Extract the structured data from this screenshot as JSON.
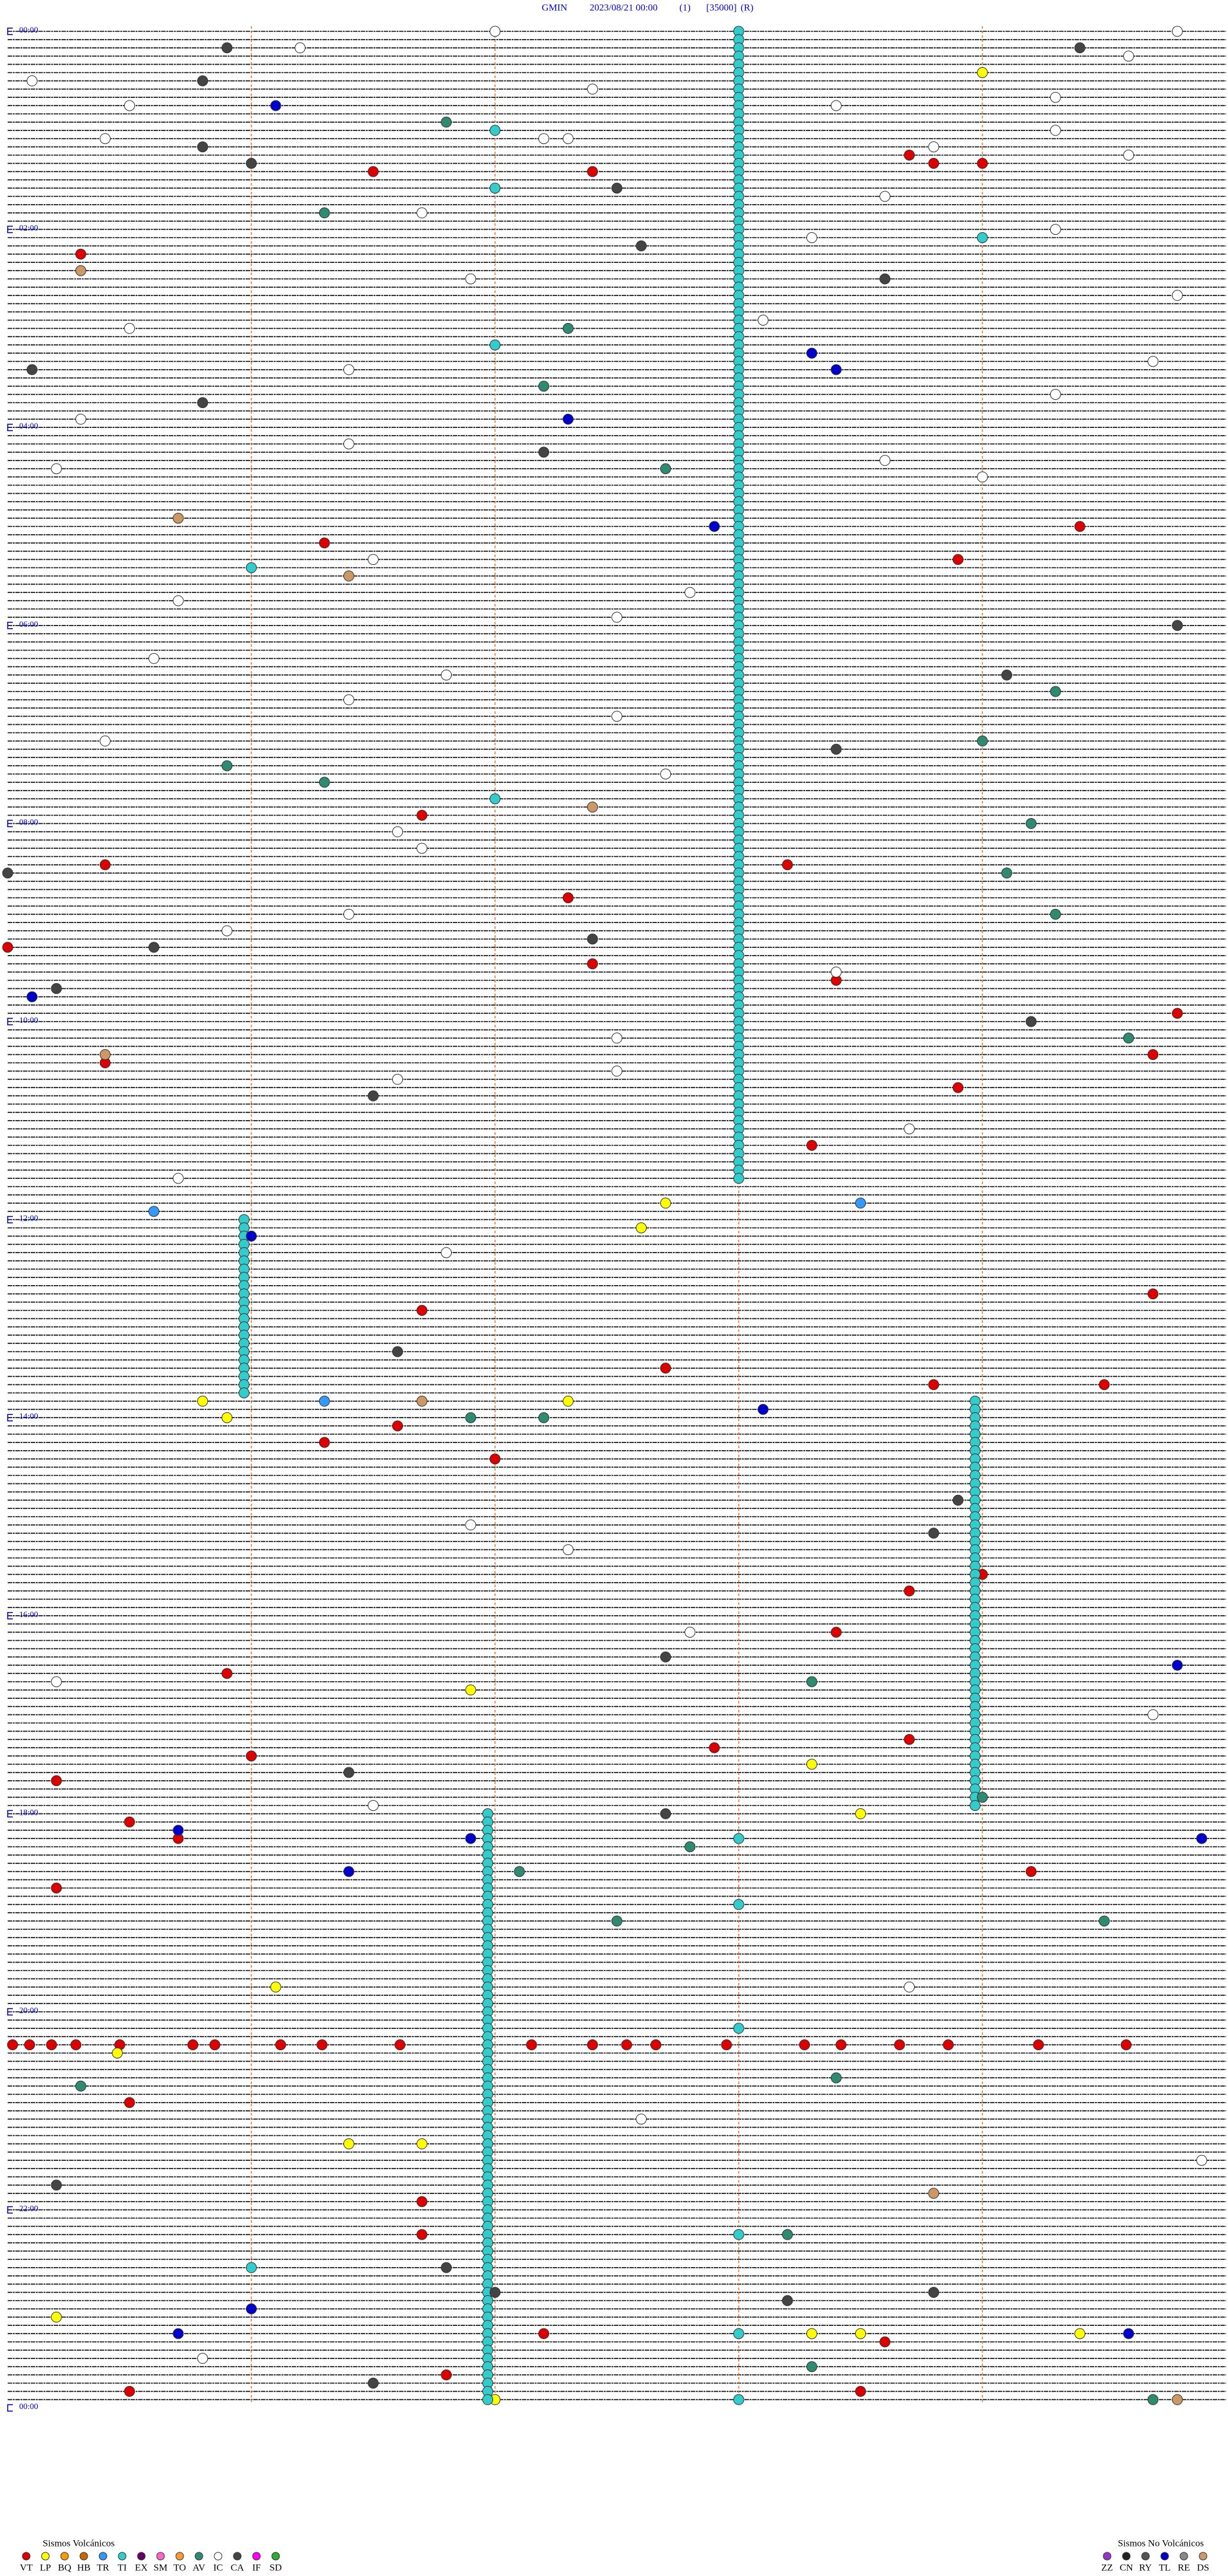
{
  "chart_data": {
    "type": "helicorder",
    "station": "GMIN",
    "date": "2023/08/21 00:00",
    "channel": "(1)",
    "scale": "[35000]",
    "mode": "(R)",
    "xlim": [
      0,
      5
    ],
    "xticks": [
      1,
      2,
      3,
      4
    ],
    "ylim": [
      0,
      1440
    ],
    "yticks": [
      {
        "value": 0,
        "label": "00:00"
      },
      {
        "value": 120,
        "label": "02:00"
      },
      {
        "value": 240,
        "label": "04:00"
      },
      {
        "value": 360,
        "label": "06:00"
      },
      {
        "value": 480,
        "label": "08:00"
      },
      {
        "value": 600,
        "label": "10:00"
      },
      {
        "value": 720,
        "label": "12:00"
      },
      {
        "value": 840,
        "label": "14:00"
      },
      {
        "value": 960,
        "label": "16:00"
      },
      {
        "value": 1080,
        "label": "18:00"
      },
      {
        "value": 1200,
        "label": "20:00"
      },
      {
        "value": 1320,
        "label": "22:00"
      },
      {
        "value": 1440,
        "label": "00:00"
      }
    ],
    "groups": [
      "Sismos Volcánicos",
      "Sismos No Volcánicos"
    ],
    "series": [
      {
        "name": "VT",
        "group": 0,
        "color": "#dd0000",
        "values": [
          135.3,
          86.5,
          87.4,
          78.7,
          83.8,
          84.0,
          304.4,
          323.9,
          311.3,
          476.7,
          527.3,
          505.4,
          508.2,
          567.4,
          555.0,
          578.4,
          599.8,
          624.7,
          625.4,
          643.9,
          678.3,
          769.7,
          776.7,
          812.7,
          823.8,
          824.5,
          846.6,
          856.3,
          867.0,
          939.0,
          948.7,
          973.4,
          995.9,
          1042.9,
          1038.7,
          1046.0,
          1060.2,
          1085.5,
          1095.7,
          1125.2,
          1119.2,
          1220.02,
          1220.09,
          1220.18,
          1220.28,
          1220.46,
          1220.76,
          1220.85,
          1221.12,
          1221.29,
          1221.61,
          1222.15,
          1222.4,
          1222.54,
          1222.66,
          1222.95,
          1223.27,
          1223.42,
          1223.66,
          1223.86,
          1224.23,
          1224.59,
          1255.5,
          1316.7,
          1336.7,
          1397.2,
          1403.6,
          1421.8,
          1430.5,
          1433.5
        ]
      },
      {
        "name": "LP",
        "group": 0,
        "color": "#ffff00",
        "values": [
          29.0,
          712.7,
          727.6,
          830.8,
          840.9,
          832.3,
          1006.9,
          1053.3,
          1083.5,
          1225.45,
          1186.1,
          1281.4,
          1281.7,
          1398.3,
          1398.5,
          1399.4,
          1385.2,
          1437.0
        ]
      },
      {
        "name": "BQ",
        "group": 0,
        "color": "#ff9900",
        "values": []
      },
      {
        "name": "HB",
        "group": 0,
        "color": "#cc6600",
        "values": []
      },
      {
        "name": "TR",
        "group": 0,
        "color": "#3399ff",
        "values": [
          715.6,
          713.5,
          831.3
        ]
      },
      {
        "name": "TI",
        "group": 0,
        "color": "#33cccc",
        "values": [
          1098.0,
          1138.0,
          1213.0,
          1338.0,
          1398.0,
          1438.0,
          129.0,
          192.0,
          326.0,
          467.0,
          62.0,
          97.0,
          1356.0
        ],
        "runs": [
          {
            "from": 0,
            "to": 699,
            "offset": 3.0
          },
          {
            "from": 720,
            "to": 829,
            "offset": 0.97
          },
          {
            "from": 830,
            "to": 1079,
            "offset": 3.97
          },
          {
            "from": 1080,
            "to": 1439,
            "offset": 1.97
          }
        ]
      },
      {
        "name": "EX",
        "group": 0,
        "color": "#660066",
        "values": []
      },
      {
        "name": "SM",
        "group": 0,
        "color": "#ff66cc",
        "values": []
      },
      {
        "name": "TO",
        "group": 0,
        "color": "#ff9933",
        "values": []
      },
      {
        "name": "AV",
        "group": 0,
        "color": "#2e8b72",
        "values": [
          56.8,
          111.3,
          182.3,
          217.2,
          267.7,
          445.9,
          456.3,
          434.0,
          484.2,
          514.1,
          539.3,
          404.3,
          614.6,
          841.9,
          842.2,
          1003.3,
          1074.0,
          1102.8,
          1117.1,
          1147.5,
          1149.5,
          1245.3,
          1243.4,
          1338.2,
          1418.3,
          1439.7
        ]
      },
      {
        "name": "IC",
        "group": 0,
        "color": "#ffffff",
        "values": [
          11.2,
          2.0,
          4.8,
          19.6,
          30.1,
          37.4,
          45.5,
          48.4,
          44.3,
          64.3,
          65.4,
          67.2,
          67.3,
          73.8,
          79.6,
          103.6,
          111.7,
          124.3,
          128.3,
          151.9,
          164.8,
          180.5,
          178.1,
          204.7,
          206.4,
          224.3,
          235.3,
          251.4,
          263.6,
          265.2,
          274.0,
          321.5,
          345.7,
          342.8,
          357.5,
          380.6,
          391.8,
          406.4,
          417.5,
          430.4,
          452.7,
          486.6,
          496.7,
          536.4,
          545.9,
          573.4,
          612.5,
          632.5,
          636.6,
          668.7,
          695.7,
          741.8,
          906.9,
          922.3,
          972.8,
          1000.2,
          1024.7,
          1076.5,
          1188.7,
          1267.6,
          1294.9,
          1410.8
        ]
      },
      {
        "name": "CA",
        "group": 0,
        "color": "#444444",
        "values": [
          10.9,
          14.4,
          30.8,
          70.8,
          81.0,
          97.5,
          132.6,
          153.6,
          205.1,
          225.8,
          257.2,
          364.8,
          394.1,
          438.4,
          510.0,
          555.6,
          552.4,
          580.2,
          604.2,
          646.5,
          801.6,
          893.9,
          913.8,
          987.7,
          1056.4,
          1082.7,
          1305.2,
          1356.8,
          1373.8,
          1372.0,
          1378.2,
          1426.5
        ]
      },
      {
        "name": "IF",
        "group": 0,
        "color": "#ff00ff",
        "values": []
      },
      {
        "name": "SD",
        "group": 0,
        "color": "#33aa33",
        "values": []
      },
      {
        "name": "ZZ",
        "group": 1,
        "color": "#9933cc",
        "values": []
      },
      {
        "name": "CN",
        "group": 1,
        "color": "#222222",
        "values": []
      },
      {
        "name": "RY",
        "group": 1,
        "color": "#555555",
        "values": []
      },
      {
        "name": "TL",
        "group": 1,
        "color": "#0000cc",
        "values": [
          46.1,
          198.3,
          208.4,
          237.3,
          302.9,
          585.1,
          731.0,
          838.1,
          994.8,
          1090.7,
          1096.9,
          1099.9,
          1116.4,
          1381.0,
          1395.7,
          1399.6
        ]
      },
      {
        "name": "RE",
        "group": 1,
        "color": "#888888",
        "values": []
      },
      {
        "name": "DS",
        "group": 1,
        "color": "#cc9966",
        "values": [
          145.3,
          295.7,
          331.4,
          472.4,
          620.4,
          831.7,
          1313.8,
          1439.8
        ]
      }
    ]
  }
}
